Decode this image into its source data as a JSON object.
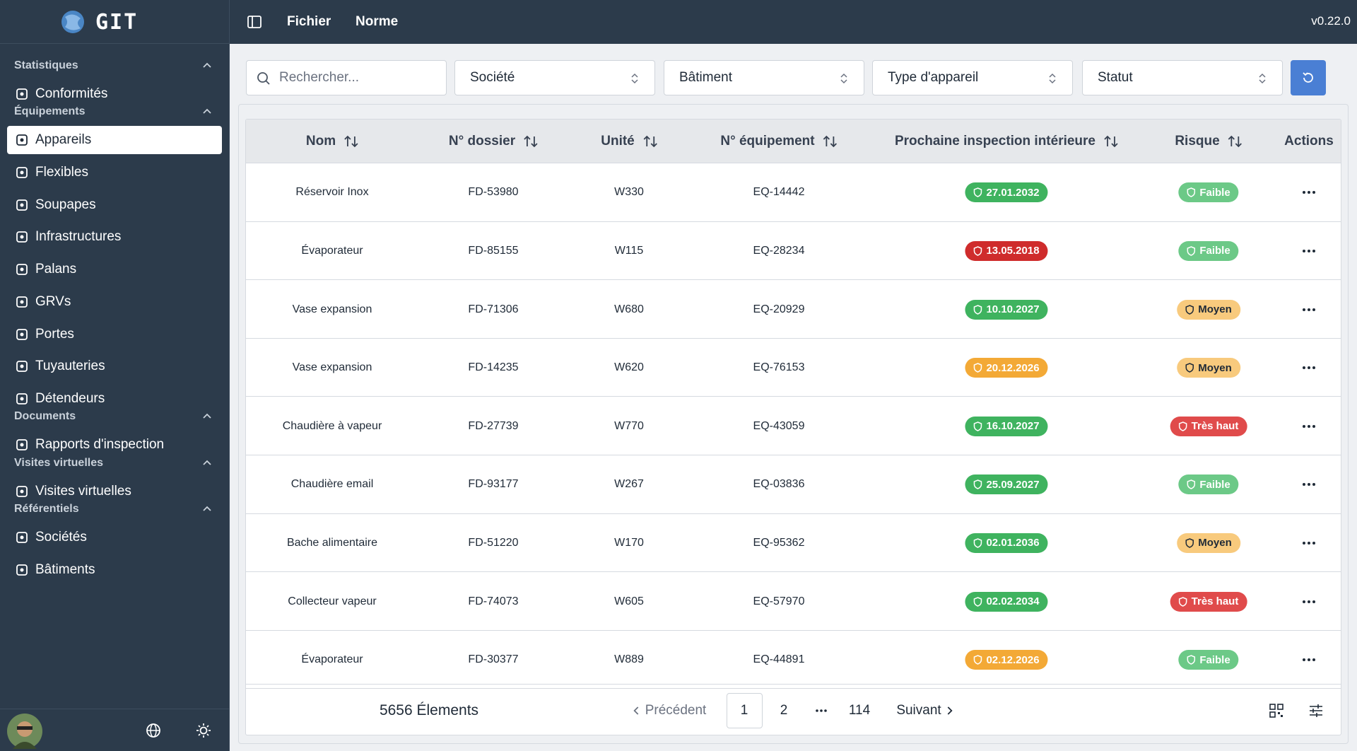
{
  "app": {
    "logo": "GIT",
    "version": "v0.22.0",
    "menu": [
      "Fichier",
      "Norme"
    ]
  },
  "sidebar": {
    "sections": [
      {
        "title": "Statistiques",
        "items": [
          {
            "label": "Conformités"
          }
        ]
      },
      {
        "title": "Équipements",
        "items": [
          {
            "label": "Appareils",
            "active": true
          },
          {
            "label": "Flexibles"
          },
          {
            "label": "Soupapes"
          },
          {
            "label": "Infrastructures"
          },
          {
            "label": "Palans"
          },
          {
            "label": "GRVs"
          },
          {
            "label": "Portes"
          },
          {
            "label": "Tuyauteries"
          },
          {
            "label": "Détendeurs"
          }
        ]
      },
      {
        "title": "Documents",
        "items": [
          {
            "label": "Rapports d'inspection"
          }
        ]
      },
      {
        "title": "Visites virtuelles",
        "items": [
          {
            "label": "Visites virtuelles"
          }
        ]
      },
      {
        "title": "Référentiels",
        "items": [
          {
            "label": "Sociétés"
          },
          {
            "label": "Bâtiments"
          }
        ]
      }
    ]
  },
  "filters": {
    "search": "Rechercher...",
    "selects": [
      "Société",
      "Bâtiment",
      "Type d'appareil",
      "Statut"
    ]
  },
  "table": {
    "headers": [
      "Nom",
      "N° dossier",
      "Unité",
      "N° équipement",
      "Prochaine inspection intérieure",
      "Risque",
      "Actions"
    ],
    "rows": [
      {
        "name": "Réservoir Inox",
        "dossier": "FD-53980",
        "unit": "W330",
        "equipment": "EQ-14442",
        "date": "27.01.2032",
        "date_color": "#3fb35f",
        "risk": "Faible",
        "risk_color": "#6cc987"
      },
      {
        "name": "Évaporateur",
        "dossier": "FD-85155",
        "unit": "W115",
        "equipment": "EQ-28234",
        "date": "13.05.2018",
        "date_color": "#cf2c2c",
        "risk": "Faible",
        "risk_color": "#6cc987"
      },
      {
        "name": "Vase expansion",
        "dossier": "FD-71306",
        "unit": "W680",
        "equipment": "EQ-20929",
        "date": "10.10.2027",
        "date_color": "#3fb35f",
        "risk": "Moyen",
        "risk_color": "#f8ca7d"
      },
      {
        "name": "Vase expansion",
        "dossier": "FD-14235",
        "unit": "W620",
        "equipment": "EQ-76153",
        "date": "20.12.2026",
        "date_color": "#f3a936",
        "risk": "Moyen",
        "risk_color": "#f8ca7d"
      },
      {
        "name": "Chaudière à vapeur",
        "dossier": "FD-27739",
        "unit": "W770",
        "equipment": "EQ-43059",
        "date": "16.10.2027",
        "date_color": "#3fb35f",
        "risk": "Très haut",
        "risk_color": "#e04b4b"
      },
      {
        "name": "Chaudière email",
        "dossier": "FD-93177",
        "unit": "W267",
        "equipment": "EQ-03836",
        "date": "25.09.2027",
        "date_color": "#3fb35f",
        "risk": "Faible",
        "risk_color": "#6cc987"
      },
      {
        "name": "Bache alimentaire",
        "dossier": "FD-51220",
        "unit": "W170",
        "equipment": "EQ-95362",
        "date": "02.01.2036",
        "date_color": "#3fb35f",
        "risk": "Moyen",
        "risk_color": "#f8ca7d"
      },
      {
        "name": "Collecteur vapeur",
        "dossier": "FD-74073",
        "unit": "W605",
        "equipment": "EQ-57970",
        "date": "02.02.2034",
        "date_color": "#3fb35f",
        "risk": "Très haut",
        "risk_color": "#e04b4b"
      },
      {
        "name": "Évaporateur",
        "dossier": "FD-30377",
        "unit": "W889",
        "equipment": "EQ-44891",
        "date": "02.12.2026",
        "date_color": "#f3a936",
        "risk": "Faible",
        "risk_color": "#6cc987"
      }
    ]
  },
  "pagination": {
    "count": "5656 Élements",
    "previous": "Précédent",
    "pages": [
      "1",
      "2",
      "114"
    ],
    "next": "Suivant"
  }
}
